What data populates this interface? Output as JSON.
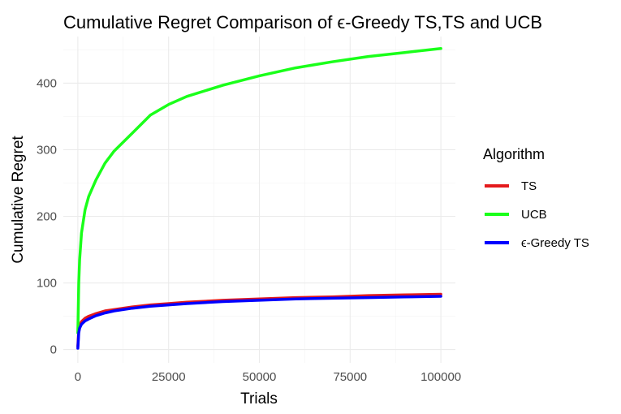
{
  "chart_data": {
    "type": "line",
    "title": "Cumulative Regret Comparison of ϵ-Greedy TS,TS and UCB",
    "xlabel": "Trials",
    "ylabel": "Cumulative Regret",
    "xlim": [
      -4000,
      104000
    ],
    "ylim": [
      -20,
      470
    ],
    "x_ticks": [
      0,
      25000,
      50000,
      75000,
      100000
    ],
    "x_tick_labels": [
      "0",
      "25000",
      "50000",
      "75000",
      "100000"
    ],
    "y_ticks": [
      0,
      100,
      200,
      300,
      400
    ],
    "y_tick_labels": [
      "0",
      "100",
      "200",
      "300",
      "400"
    ],
    "grid": true,
    "legend": {
      "title": "Algorithm",
      "position": "right"
    },
    "x": [
      0,
      250,
      500,
      1000,
      2000,
      3000,
      5000,
      7500,
      10000,
      15000,
      20000,
      25000,
      30000,
      40000,
      50000,
      60000,
      70000,
      80000,
      90000,
      100000
    ],
    "series": [
      {
        "name": "TS",
        "color": "#e41a1c",
        "values": [
          5,
          30,
          36,
          42,
          47,
          50,
          54,
          58,
          60,
          64,
          67,
          69,
          71,
          74,
          76,
          78,
          79,
          81,
          82,
          83
        ]
      },
      {
        "name": "UCB",
        "color": "#1aff1a",
        "values": [
          25,
          100,
          135,
          175,
          210,
          230,
          255,
          280,
          298,
          325,
          352,
          368,
          380,
          397,
          411,
          423,
          432,
          440,
          446,
          452
        ]
      },
      {
        "name": "ϵ-Greedy TS",
        "color": "#0000ff",
        "values": [
          2,
          25,
          32,
          38,
          43,
          46,
          51,
          55,
          58,
          62,
          65,
          67,
          69,
          72,
          74,
          76,
          77,
          78,
          79,
          80
        ]
      }
    ]
  }
}
